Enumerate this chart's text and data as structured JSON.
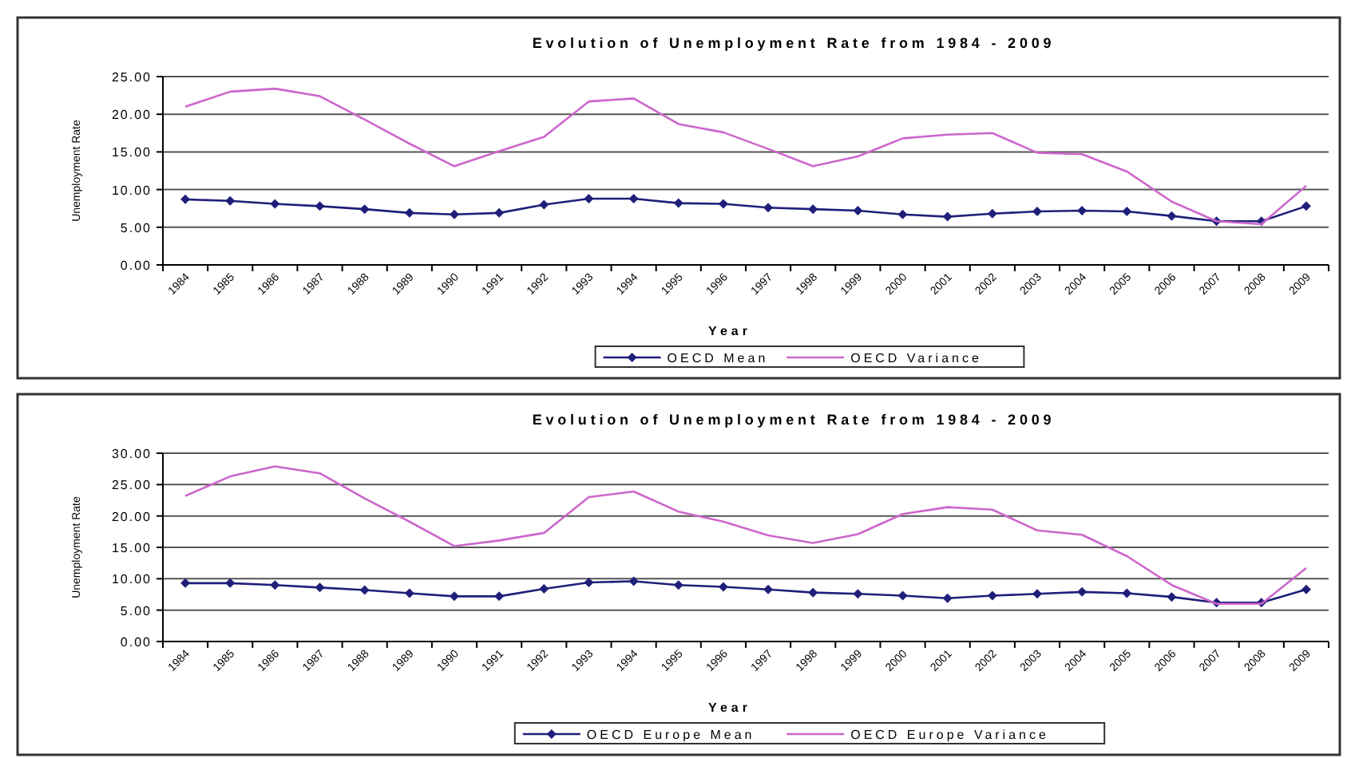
{
  "chart_data": [
    {
      "type": "line",
      "title": "Evolution of Unemployment Rate from 1984 - 2009",
      "xlabel": "Year",
      "ylabel": "Unemployment Rate",
      "categories": [
        "1984",
        "1985",
        "1986",
        "1987",
        "1988",
        "1989",
        "1990",
        "1991",
        "1992",
        "1993",
        "1994",
        "1995",
        "1996",
        "1997",
        "1998",
        "1999",
        "2000",
        "2001",
        "2002",
        "2003",
        "2004",
        "2005",
        "2006",
        "2007",
        "2008",
        "2009"
      ],
      "series": [
        {
          "name": "OECD Mean",
          "color": "#1f1f7a",
          "marker": "diamond",
          "values": [
            8.7,
            8.5,
            8.1,
            7.8,
            7.4,
            6.9,
            6.7,
            6.9,
            8.0,
            8.8,
            8.8,
            8.2,
            8.1,
            7.6,
            7.4,
            7.2,
            6.7,
            6.4,
            6.8,
            7.1,
            7.2,
            7.1,
            6.5,
            5.8,
            5.8,
            7.8
          ]
        },
        {
          "name": "OECD Variance",
          "color": "#cc66cc",
          "marker": "none",
          "values": [
            21.0,
            23.0,
            23.4,
            22.4,
            19.3,
            16.1,
            13.1,
            15.1,
            17.0,
            21.7,
            22.1,
            18.7,
            17.6,
            15.4,
            13.1,
            14.4,
            16.8,
            17.3,
            17.5,
            14.9,
            14.7,
            12.4,
            8.4,
            5.8,
            5.4,
            10.5
          ]
        }
      ],
      "ylim": [
        0,
        25
      ],
      "yticks": [
        {
          "value": 0,
          "label": "0.00"
        },
        {
          "value": 5,
          "label": "5.00"
        },
        {
          "value": 10,
          "label": "10.00"
        },
        {
          "value": 15,
          "label": "15.00"
        },
        {
          "value": 20,
          "label": "20.00"
        },
        {
          "value": 25,
          "label": "25.00"
        }
      ],
      "grid": "y",
      "legend": "bottom",
      "line_style": "solid"
    },
    {
      "type": "line",
      "title": "Evolution of Unemployment Rate from 1984 - 2009",
      "xlabel": "Year",
      "ylabel": "Unemployment Rate",
      "categories": [
        "1984",
        "1985",
        "1986",
        "1987",
        "1988",
        "1989",
        "1990",
        "1991",
        "1992",
        "1993",
        "1994",
        "1995",
        "1996",
        "1997",
        "1998",
        "1999",
        "2000",
        "2001",
        "2002",
        "2003",
        "2004",
        "2005",
        "2006",
        "2007",
        "2008",
        "2009"
      ],
      "series": [
        {
          "name": "OECD Europe Mean",
          "color": "#1f1f7a",
          "marker": "diamond",
          "values": [
            9.3,
            9.3,
            9.0,
            8.6,
            8.2,
            7.7,
            7.2,
            7.2,
            8.4,
            9.4,
            9.6,
            9.0,
            8.7,
            8.3,
            7.8,
            7.6,
            7.3,
            6.9,
            7.3,
            7.6,
            7.9,
            7.7,
            7.1,
            6.2,
            6.2,
            8.3
          ]
        },
        {
          "name": "OECD Europe Variance",
          "color": "#cc66cc",
          "marker": "none",
          "values": [
            23.2,
            26.3,
            27.9,
            26.8,
            22.8,
            19.1,
            15.2,
            16.1,
            17.3,
            23.0,
            23.9,
            20.7,
            19.1,
            16.9,
            15.7,
            17.1,
            20.3,
            21.4,
            21.0,
            17.7,
            17.0,
            13.6,
            9.0,
            6.0,
            6.0,
            11.7
          ]
        }
      ],
      "ylim": [
        0,
        30
      ],
      "yticks": [
        {
          "value": 0,
          "label": "0.00"
        },
        {
          "value": 5,
          "label": "5.00"
        },
        {
          "value": 10,
          "label": "10.00"
        },
        {
          "value": 15,
          "label": "15.00"
        },
        {
          "value": 20,
          "label": "20.00"
        },
        {
          "value": 25,
          "label": "25.00"
        },
        {
          "value": 30,
          "label": "30.00"
        }
      ],
      "grid": "y",
      "legend": "bottom",
      "line_style": "solid"
    }
  ]
}
